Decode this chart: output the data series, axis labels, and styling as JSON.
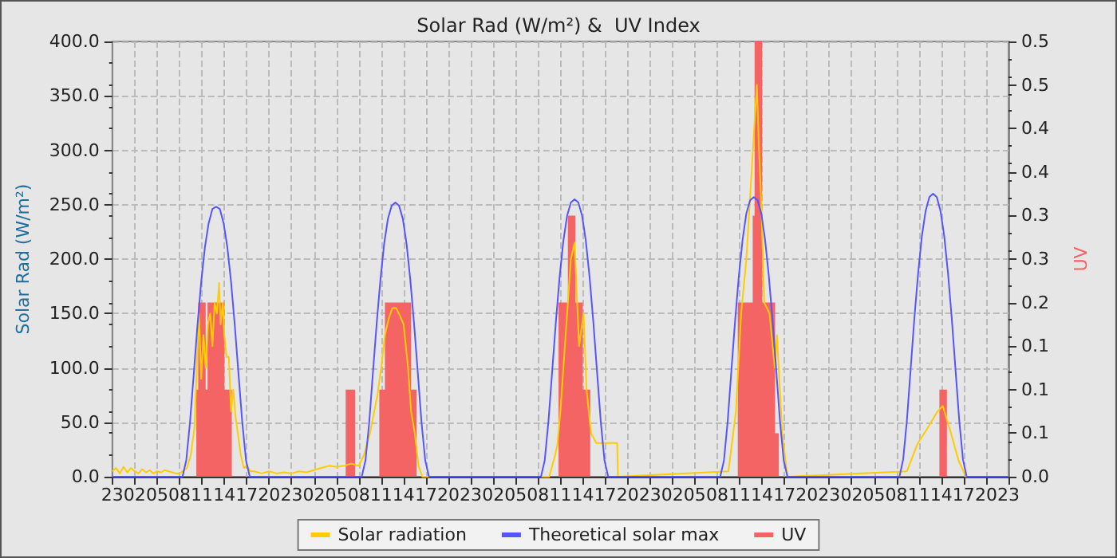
{
  "chart_data": {
    "type": "line",
    "title": "Solar Rad (W/m²) &  UV Index",
    "ylabel": "Solar Rad (W/m²)",
    "y2label": "UV",
    "xlim": [
      "--01-01T23:00",
      "--01-06T23:00"
    ],
    "xticks": [
      {
        "value": "--01-01T23:00",
        "label": "23"
      },
      {
        "value": "--01-02T02:00",
        "label": "02"
      },
      {
        "value": "--01-02T05:00",
        "label": "05"
      },
      {
        "value": "--01-02T08:00",
        "label": "08"
      },
      {
        "value": "--01-02T11:00",
        "label": "11"
      },
      {
        "value": "--01-02T14:00",
        "label": "14"
      },
      {
        "value": "--01-02T17:00",
        "label": "17"
      },
      {
        "value": "--01-02T20:00",
        "label": "20"
      },
      {
        "value": "--01-02T23:00",
        "label": "23"
      },
      {
        "value": "--01-03T02:00",
        "label": "02"
      },
      {
        "value": "--01-03T05:00",
        "label": "05"
      },
      {
        "value": "--01-03T08:00",
        "label": "08"
      },
      {
        "value": "--01-03T11:00",
        "label": "11"
      },
      {
        "value": "--01-03T14:00",
        "label": "14"
      },
      {
        "value": "--01-03T17:00",
        "label": "17"
      },
      {
        "value": "--01-03T20:00",
        "label": "20"
      },
      {
        "value": "--01-03T23:00",
        "label": "23"
      },
      {
        "value": "--01-04T02:00",
        "label": "02"
      },
      {
        "value": "--01-04T05:00",
        "label": "05"
      },
      {
        "value": "--01-04T08:00",
        "label": "08"
      },
      {
        "value": "--01-04T11:00",
        "label": "11"
      },
      {
        "value": "--01-04T14:00",
        "label": "14"
      },
      {
        "value": "--01-04T17:00",
        "label": "17"
      },
      {
        "value": "--01-04T20:00",
        "label": "20"
      },
      {
        "value": "--01-04T23:00",
        "label": "23"
      },
      {
        "value": "--01-05T02:00",
        "label": "02"
      },
      {
        "value": "--01-05T05:00",
        "label": "05"
      },
      {
        "value": "--01-05T08:00",
        "label": "08"
      },
      {
        "value": "--01-05T11:00",
        "label": "11"
      },
      {
        "value": "--01-05T14:00",
        "label": "14"
      },
      {
        "value": "--01-05T17:00",
        "label": "17"
      },
      {
        "value": "--01-05T20:00",
        "label": "20"
      },
      {
        "value": "--01-05T23:00",
        "label": "23"
      },
      {
        "value": "--01-06T02:00",
        "label": "02"
      },
      {
        "value": "--01-06T05:00",
        "label": "05"
      },
      {
        "value": "--01-06T08:00",
        "label": "08"
      },
      {
        "value": "--01-06T11:00",
        "label": "11"
      },
      {
        "value": "--01-06T14:00",
        "label": "14"
      },
      {
        "value": "--01-06T17:00",
        "label": "17"
      },
      {
        "value": "--01-06T20:00",
        "label": "20"
      },
      {
        "value": "--01-06T23:00",
        "label": "23"
      }
    ],
    "ylim": [
      0,
      400
    ],
    "yticks": [
      {
        "value": 0,
        "label": "0.0"
      },
      {
        "value": 50,
        "label": "50.0"
      },
      {
        "value": 100,
        "label": "100.0"
      },
      {
        "value": 150,
        "label": "150.0"
      },
      {
        "value": 200,
        "label": "200.0"
      },
      {
        "value": 250,
        "label": "250.0"
      },
      {
        "value": 300,
        "label": "300.0"
      },
      {
        "value": 350,
        "label": "350.0"
      },
      {
        "value": 400,
        "label": "400.0"
      }
    ],
    "y2lim": [
      0,
      0.5
    ],
    "y2ticks": [
      {
        "value": 0,
        "label": "0.0"
      },
      {
        "value": 0.05,
        "label": "0.1"
      },
      {
        "value": 0.1,
        "label": "0.1"
      },
      {
        "value": 0.15,
        "label": "0.1"
      },
      {
        "value": 0.2,
        "label": "0.2"
      },
      {
        "value": 0.25,
        "label": "0.3"
      },
      {
        "value": 0.3,
        "label": "0.3"
      },
      {
        "value": 0.35,
        "label": "0.4"
      },
      {
        "value": 0.4,
        "label": "0.4"
      },
      {
        "value": 0.45,
        "label": "0.5"
      },
      {
        "value": 0.5,
        "label": "0.5"
      }
    ],
    "grid": true,
    "legend": "bottom",
    "marker": "none",
    "line_style": "solid",
    "series": [
      {
        "name": "Solar radiation",
        "color": "#ffcc00",
        "x": [
          "--01-01T23:00",
          "--01-01T23:30",
          "--01-02T00:00",
          "--01-02T00:30",
          "--01-02T01:00",
          "--01-02T01:30",
          "--01-02T02:00",
          "--01-02T02:30",
          "--01-02T03:00",
          "--01-02T03:30",
          "--01-02T04:00",
          "--01-02T04:30",
          "--01-02T05:00",
          "--01-02T05:30",
          "--01-02T06:00",
          "--01-02T07:00",
          "--01-02T07:30",
          "--01-02T08:00",
          "--01-02T09:00",
          "--01-02T09:30",
          "--01-02T10:00",
          "--01-02T10:18",
          "--01-02T10:36",
          "--01-02T10:54",
          "--01-02T11:12",
          "--01-02T11:30",
          "--01-02T11:48",
          "--01-02T12:06",
          "--01-02T12:24",
          "--01-02T12:42",
          "--01-02T13:00",
          "--01-02T13:18",
          "--01-02T13:30",
          "--01-02T13:48",
          "--01-02T14:00",
          "--01-02T14:18",
          "--01-02T14:36",
          "--01-02T14:54",
          "--01-02T15:12",
          "--01-02T15:30",
          "--01-02T15:48",
          "--01-02T16:12",
          "--01-02T16:36",
          "--01-02T17:00",
          "--01-02T17:30",
          "--01-02T18:00",
          "--01-02T19:00",
          "--01-02T20:00",
          "--01-02T21:00",
          "--01-02T22:00",
          "--01-02T23:00",
          "--01-03T00:00",
          "--01-03T01:00",
          "--01-03T02:00",
          "--01-03T03:00",
          "--01-03T04:00",
          "--01-03T05:00",
          "--01-03T06:00",
          "--01-03T07:00",
          "--01-03T08:00",
          "--01-03T08:42",
          "--01-03T09:30",
          "--01-03T10:30",
          "--01-03T11:00",
          "--01-03T11:30",
          "--01-03T12:00",
          "--01-03T12:30",
          "--01-03T13:00",
          "--01-03T13:30",
          "--01-03T14:00",
          "--01-03T14:18",
          "--01-03T14:36",
          "--01-03T15:00",
          "--01-03T15:30",
          "--01-03T16:00",
          "--01-03T16:30",
          "--01-04T09:30",
          "--01-04T10:18",
          "--01-04T10:36",
          "--01-04T11:00",
          "--01-04T11:42",
          "--01-04T12:24",
          "--01-04T12:54",
          "--01-04T13:30",
          "--01-04T14:06",
          "--01-04T14:30",
          "--01-04T15:06",
          "--01-04T15:48",
          "--01-04T18:36",
          "--01-04T18:42",
          "--01-05T09:30",
          "--01-05T10:30",
          "--01-05T11:12",
          "--01-05T11:54",
          "--01-05T12:36",
          "--01-05T13:18",
          "--01-05T13:36",
          "--01-05T13:54",
          "--01-05T14:18",
          "--01-05T15:00",
          "--01-05T15:42",
          "--01-05T16:00",
          "--01-05T16:42",
          "--01-05T17:24",
          "--01-06T09:24",
          "--01-06T10:48",
          "--01-06T12:12",
          "--01-06T13:30",
          "--01-06T14:12",
          "--01-06T15:18",
          "--01-06T16:18",
          "--01-06T17:18",
          "--01-06T23:00"
        ],
        "values": [
          5,
          8,
          3,
          9,
          4,
          8,
          5,
          3,
          7,
          4,
          6,
          3,
          5,
          4,
          6,
          4,
          3,
          3,
          8,
          20,
          45,
          100,
          150,
          90,
          130,
          100,
          140,
          150,
          120,
          160,
          150,
          178,
          140,
          160,
          130,
          110,
          110,
          60,
          80,
          55,
          40,
          20,
          8,
          10,
          5,
          5,
          3,
          5,
          3,
          4,
          3,
          5,
          4,
          6,
          8,
          10,
          9,
          10,
          12,
          10,
          20,
          40,
          75,
          100,
          130,
          145,
          155,
          155,
          148,
          140,
          120,
          100,
          60,
          40,
          10,
          0,
          0,
          20,
          30,
          60,
          130,
          200,
          215,
          120,
          150,
          80,
          40,
          31,
          31,
          0,
          5,
          60,
          150,
          200,
          280,
          360,
          300,
          250,
          160,
          150,
          100,
          130,
          40,
          0,
          5,
          30,
          45,
          60,
          65,
          40,
          15,
          0,
          0
        ]
      },
      {
        "name": "Theoretical solar max",
        "color": "#5555ff",
        "x": [
          "--01-01T23:00",
          "--01-02T08:24",
          "--01-02T08:54",
          "--01-02T09:24",
          "--01-02T09:54",
          "--01-02T10:24",
          "--01-02T10:54",
          "--01-02T11:24",
          "--01-02T11:54",
          "--01-02T12:24",
          "--01-02T12:54",
          "--01-02T13:24",
          "--01-02T13:54",
          "--01-02T14:24",
          "--01-02T14:54",
          "--01-02T15:24",
          "--01-02T15:54",
          "--01-02T16:24",
          "--01-02T16:54",
          "--01-02T17:24",
          "--01-03T08:24",
          "--01-03T08:54",
          "--01-03T09:24",
          "--01-03T09:54",
          "--01-03T10:24",
          "--01-03T10:54",
          "--01-03T11:24",
          "--01-03T11:54",
          "--01-03T12:24",
          "--01-03T12:54",
          "--01-03T13:24",
          "--01-03T13:54",
          "--01-03T14:24",
          "--01-03T14:54",
          "--01-03T15:24",
          "--01-03T15:54",
          "--01-03T16:24",
          "--01-03T16:54",
          "--01-03T17:24",
          "--01-04T08:24",
          "--01-04T08:54",
          "--01-04T09:24",
          "--01-04T09:54",
          "--01-04T10:24",
          "--01-04T10:54",
          "--01-04T11:24",
          "--01-04T11:54",
          "--01-04T12:24",
          "--01-04T12:54",
          "--01-04T13:24",
          "--01-04T13:54",
          "--01-04T14:24",
          "--01-04T14:54",
          "--01-04T15:24",
          "--01-04T15:54",
          "--01-04T16:24",
          "--01-04T16:54",
          "--01-04T17:24",
          "--01-05T08:24",
          "--01-05T08:54",
          "--01-05T09:24",
          "--01-05T09:54",
          "--01-05T10:24",
          "--01-05T10:54",
          "--01-05T11:24",
          "--01-05T11:54",
          "--01-05T12:24",
          "--01-05T12:54",
          "--01-05T13:24",
          "--01-05T13:54",
          "--01-05T14:24",
          "--01-05T14:54",
          "--01-05T15:24",
          "--01-05T15:54",
          "--01-05T16:24",
          "--01-05T16:54",
          "--01-05T17:24",
          "--01-06T08:24",
          "--01-06T08:54",
          "--01-06T09:24",
          "--01-06T09:54",
          "--01-06T10:24",
          "--01-06T10:54",
          "--01-06T11:24",
          "--01-06T11:54",
          "--01-06T12:24",
          "--01-06T12:54",
          "--01-06T13:24",
          "--01-06T13:54",
          "--01-06T14:24",
          "--01-06T14:54",
          "--01-06T15:24",
          "--01-06T15:54",
          "--01-06T16:24",
          "--01-06T16:54",
          "--01-06T17:24",
          "--01-06T23:00"
        ],
        "values": [
          0,
          0,
          15,
          50,
          94,
          139,
          179,
          211,
          233,
          246,
          248,
          246,
          233,
          211,
          179,
          139,
          94,
          50,
          15,
          0,
          0,
          15,
          50,
          96,
          141,
          181,
          214,
          237,
          249,
          252,
          249,
          237,
          214,
          181,
          141,
          96,
          50,
          15,
          0,
          0,
          15,
          51,
          97,
          143,
          184,
          217,
          240,
          252,
          255,
          252,
          240,
          217,
          184,
          143,
          97,
          51,
          15,
          0,
          0,
          15,
          51,
          98,
          144,
          185,
          218,
          242,
          254,
          257,
          254,
          242,
          218,
          185,
          144,
          98,
          51,
          15,
          0,
          0,
          16,
          52,
          99,
          146,
          187,
          221,
          244,
          257,
          260,
          257,
          244,
          221,
          187,
          146,
          99,
          52,
          16,
          0,
          0
        ]
      },
      {
        "name": "UV",
        "type": "area",
        "axis": "y2",
        "color": "#f46464",
        "x": [
          "--01-01T23:00",
          "--01-02T10:15",
          "--01-02T10:30",
          "--01-02T11:30",
          "--01-02T11:45",
          "--01-02T14:00",
          "--01-02T15:00",
          "--01-03T06:15",
          "--01-03T07:30",
          "--01-03T10:45",
          "--01-03T11:30",
          "--01-03T15:00",
          "--01-03T15:45",
          "--01-04T10:45",
          "--01-04T12:00",
          "--01-04T13:00",
          "--01-04T14:00",
          "--01-04T15:00",
          "--01-05T10:45",
          "--01-05T12:45",
          "--01-05T13:00",
          "--01-05T14:00",
          "--01-05T15:45",
          "--01-05T16:15",
          "--01-06T13:45",
          "--01-06T14:45",
          "--01-06T23:00"
        ],
        "values": [
          0,
          0.1,
          0.2,
          0.1,
          0.2,
          0.1,
          0,
          0.1,
          0,
          0.1,
          0.2,
          0.1,
          0,
          0.2,
          0.3,
          0.2,
          0.1,
          0,
          0.2,
          0.3,
          0.5,
          0.2,
          0.05,
          0,
          0.1,
          0,
          0
        ]
      }
    ]
  }
}
